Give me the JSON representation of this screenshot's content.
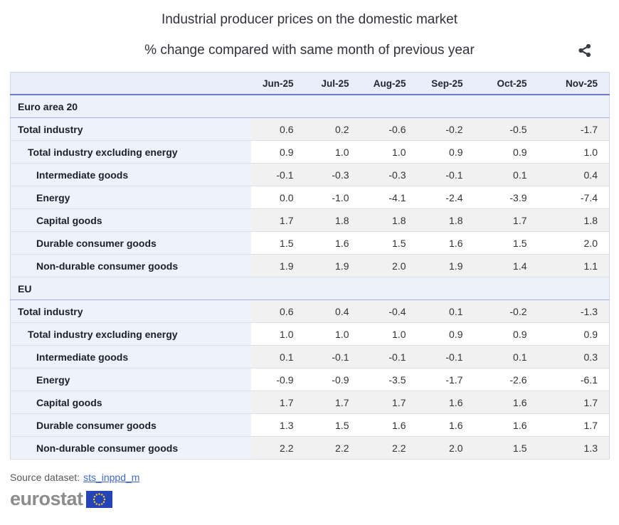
{
  "chart_data": {
    "type": "table",
    "title": "Industrial producer prices on the domestic market",
    "subtitle": "% change compared with same month of previous year",
    "unit": "% change compared with same month of previous year",
    "columns": [
      "Jun-25",
      "Jul-25",
      "Aug-25",
      "Sep-25",
      "Oct-25",
      "Nov-25"
    ],
    "sections": [
      {
        "name": "Euro area 20",
        "rows": [
          {
            "label": "Total industry",
            "indent": 0,
            "values": [
              "0.6",
              "0.2",
              "-0.6",
              "-0.2",
              "-0.5",
              "-1.7"
            ]
          },
          {
            "label": "Total industry excluding energy",
            "indent": 1,
            "values": [
              "0.9",
              "1.0",
              "1.0",
              "0.9",
              "0.9",
              "1.0"
            ]
          },
          {
            "label": "Intermediate goods",
            "indent": 2,
            "values": [
              "-0.1",
              "-0.3",
              "-0.3",
              "-0.1",
              "0.1",
              "0.4"
            ]
          },
          {
            "label": "Energy",
            "indent": 2,
            "values": [
              "0.0",
              "-1.0",
              "-4.1",
              "-2.4",
              "-3.9",
              "-7.4"
            ]
          },
          {
            "label": "Capital goods",
            "indent": 2,
            "values": [
              "1.7",
              "1.8",
              "1.8",
              "1.8",
              "1.7",
              "1.8"
            ]
          },
          {
            "label": "Durable consumer goods",
            "indent": 2,
            "values": [
              "1.5",
              "1.6",
              "1.5",
              "1.6",
              "1.5",
              "2.0"
            ]
          },
          {
            "label": "Non-durable consumer goods",
            "indent": 2,
            "values": [
              "1.9",
              "1.9",
              "2.0",
              "1.9",
              "1.4",
              "1.1"
            ]
          }
        ]
      },
      {
        "name": "EU",
        "rows": [
          {
            "label": "Total industry",
            "indent": 0,
            "values": [
              "0.6",
              "0.4",
              "-0.4",
              "0.1",
              "-0.2",
              "-1.3"
            ]
          },
          {
            "label": "Total industry excluding energy",
            "indent": 1,
            "values": [
              "1.0",
              "1.0",
              "1.0",
              "0.9",
              "0.9",
              "0.9"
            ]
          },
          {
            "label": "Intermediate goods",
            "indent": 2,
            "values": [
              "0.1",
              "-0.1",
              "-0.1",
              "-0.1",
              "0.1",
              "0.3"
            ]
          },
          {
            "label": "Energy",
            "indent": 2,
            "values": [
              "-0.9",
              "-0.9",
              "-3.5",
              "-1.7",
              "-2.6",
              "-6.1"
            ]
          },
          {
            "label": "Capital goods",
            "indent": 2,
            "values": [
              "1.7",
              "1.7",
              "1.7",
              "1.6",
              "1.6",
              "1.7"
            ]
          },
          {
            "label": "Durable consumer goods",
            "indent": 2,
            "values": [
              "1.3",
              "1.5",
              "1.6",
              "1.6",
              "1.6",
              "1.7"
            ]
          },
          {
            "label": "Non-durable consumer goods",
            "indent": 2,
            "values": [
              "2.2",
              "2.2",
              "2.2",
              "2.0",
              "1.5",
              "1.3"
            ]
          }
        ]
      }
    ],
    "layout": {
      "header_position": "top",
      "row_striping": true
    }
  },
  "footer": {
    "source_label": "Source dataset:",
    "source_link": "sts_inppd_m",
    "logo_text": "eurostat"
  },
  "icons": {
    "share": "share-icon",
    "eu_flag": "eu-flag-icon"
  },
  "colors": {
    "accent_border_blue": "#6f7dc8",
    "section_border_blue": "#a9b4dd",
    "header_bg": "#e9edf8",
    "section_bg": "#edf1fa",
    "label_col_bg": "#eef2fb",
    "stripe_gray": "#f1f1f2",
    "row_separator": "#dcdfe5",
    "link_blue": "#3e68c8",
    "logo_gray": "#8c8c8c",
    "flag_blue": "#2444b8",
    "star_yellow": "#ffd617",
    "icon_dark": "#3a3f45"
  }
}
